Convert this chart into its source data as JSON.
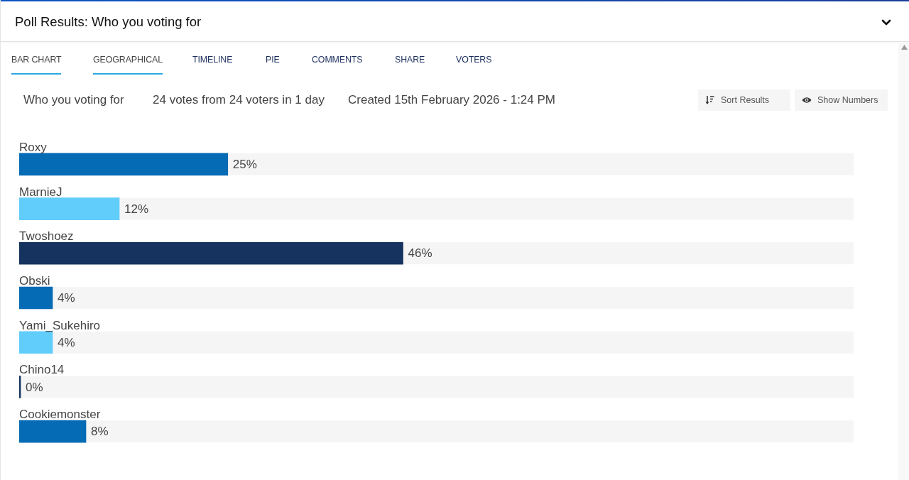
{
  "chart_data": {
    "type": "bar",
    "orientation": "horizontal",
    "title": "Poll Results: Who you voting for",
    "subtitle": "Who you voting for",
    "annotations": [
      "BAR CHART",
      "GEOGRAPHICAL",
      "TIMELINE",
      "PIE",
      "COMMENTS",
      "SHARE",
      "VOTERS",
      "24 votes from 24 voters in 1 day",
      "Created 15th February 2026 - 1:24 PM",
      "Sort Results",
      "Show Numbers"
    ],
    "categories": [
      "Roxy",
      "MarnieJ",
      "Twoshoez",
      "Obski",
      "Yami_Sukehiro",
      "Chino14",
      "Cookiemonster"
    ],
    "values": [
      25,
      12,
      46,
      4,
      4,
      0,
      8
    ],
    "colors": [
      "#056bb5",
      "#61cdfb",
      "#16325f",
      "#056bb5",
      "#61cdfb",
      "#16325f",
      "#056bb5"
    ],
    "value_labels": [
      "25%",
      "12%",
      "46%",
      "4%",
      "4%",
      "0%",
      "8%"
    ],
    "xlim": [
      0,
      100
    ],
    "tick_labels": "y"
  }
}
